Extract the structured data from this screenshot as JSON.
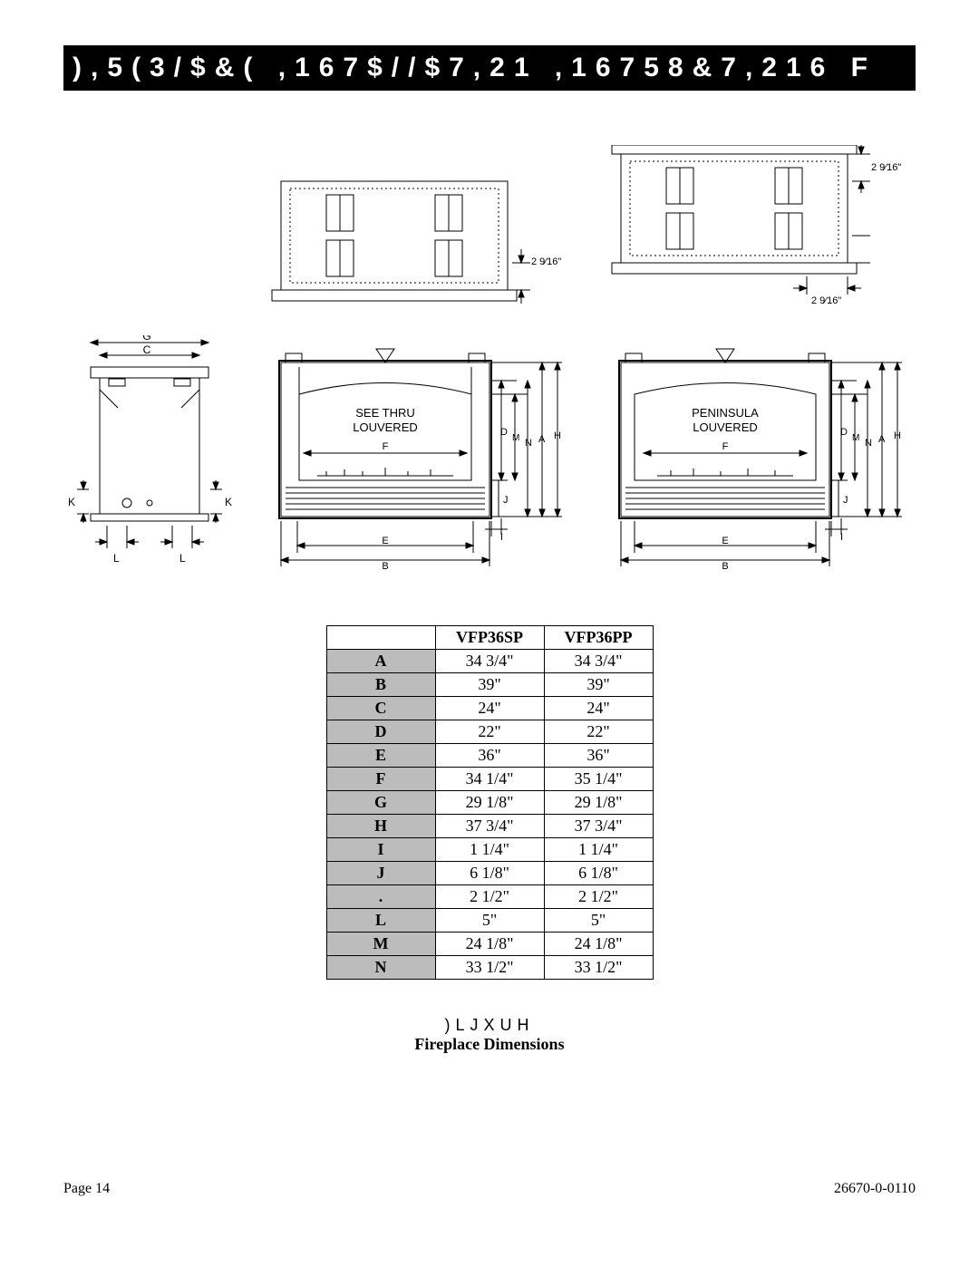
{
  "title_bar": "),5(3/$&(  ,167$//$7,21  ,16758&7,216  F",
  "diagrams": {
    "dim_2_9_16": "2 9⁄16\"",
    "side": {
      "G": "G",
      "C": "C",
      "K": "K",
      "L": "L"
    },
    "front": {
      "see_thru": "SEE THRU",
      "peninsula": "PENINSULA",
      "louvered": "LOUVERED",
      "D": "D",
      "M": "M",
      "N": "N",
      "A": "A",
      "H": "H",
      "F": "F",
      "J": "J",
      "I": "I",
      "E": "E",
      "B": "B"
    }
  },
  "table": {
    "headers": [
      "",
      "VFP36SP",
      "VFP36PP"
    ],
    "rows": [
      [
        "A",
        "34 3/4\"",
        "34 3/4\""
      ],
      [
        "B",
        "39\"",
        "39\""
      ],
      [
        "C",
        "24\"",
        "24\""
      ],
      [
        "D",
        "22\"",
        "22\""
      ],
      [
        "E",
        "36\"",
        "36\""
      ],
      [
        "F",
        "34 1/4\"",
        "35 1/4\""
      ],
      [
        "G",
        "29 1/8\"",
        "29 1/8\""
      ],
      [
        "H",
        "37 3/4\"",
        "37 3/4\""
      ],
      [
        "I",
        "1 1/4\"",
        "1 1/4\""
      ],
      [
        "J",
        "6 1/8\"",
        "6 1/8\""
      ],
      [
        ".",
        "2 1/2\"",
        "2 1/2\""
      ],
      [
        "L",
        "5\"",
        "5\""
      ],
      [
        "M",
        "24 1/8\"",
        "24 1/8\""
      ],
      [
        "N",
        "33 1/2\"",
        "33 1/2\""
      ]
    ]
  },
  "caption": {
    "fig_num": ")LJXUH",
    "text": "Fireplace Dimensions"
  },
  "footer": {
    "page": "Page 14",
    "docnum": "26670-0-0110"
  },
  "style": {
    "row_label_bg": "#bcbcbc",
    "titlebar_bg": "#000000",
    "titlebar_fg": "#ffffff",
    "stroke": "#000000"
  }
}
